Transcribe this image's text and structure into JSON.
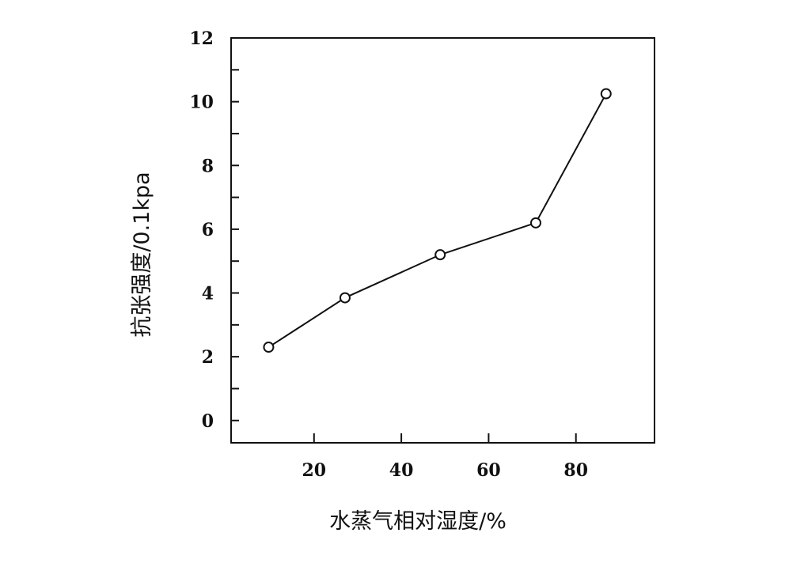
{
  "chart_data": {
    "type": "line",
    "title": "",
    "xlabel": "水蒸气相对湿度/%",
    "ylabel": "抗张强度/0.1kpa",
    "x_ticks": [
      20,
      40,
      60,
      80
    ],
    "y_ticks": [
      0,
      2,
      4,
      6,
      8,
      10,
      12
    ],
    "xlim": [
      1,
      98
    ],
    "ylim": [
      -0.7,
      12
    ],
    "grid": false,
    "legend": "none",
    "marker": "open-circle",
    "series": [
      {
        "x": [
          9.6,
          27.1,
          48.9,
          70.8,
          86.9
        ],
        "y": [
          2.3,
          3.85,
          5.2,
          6.2,
          10.25
        ]
      }
    ]
  }
}
